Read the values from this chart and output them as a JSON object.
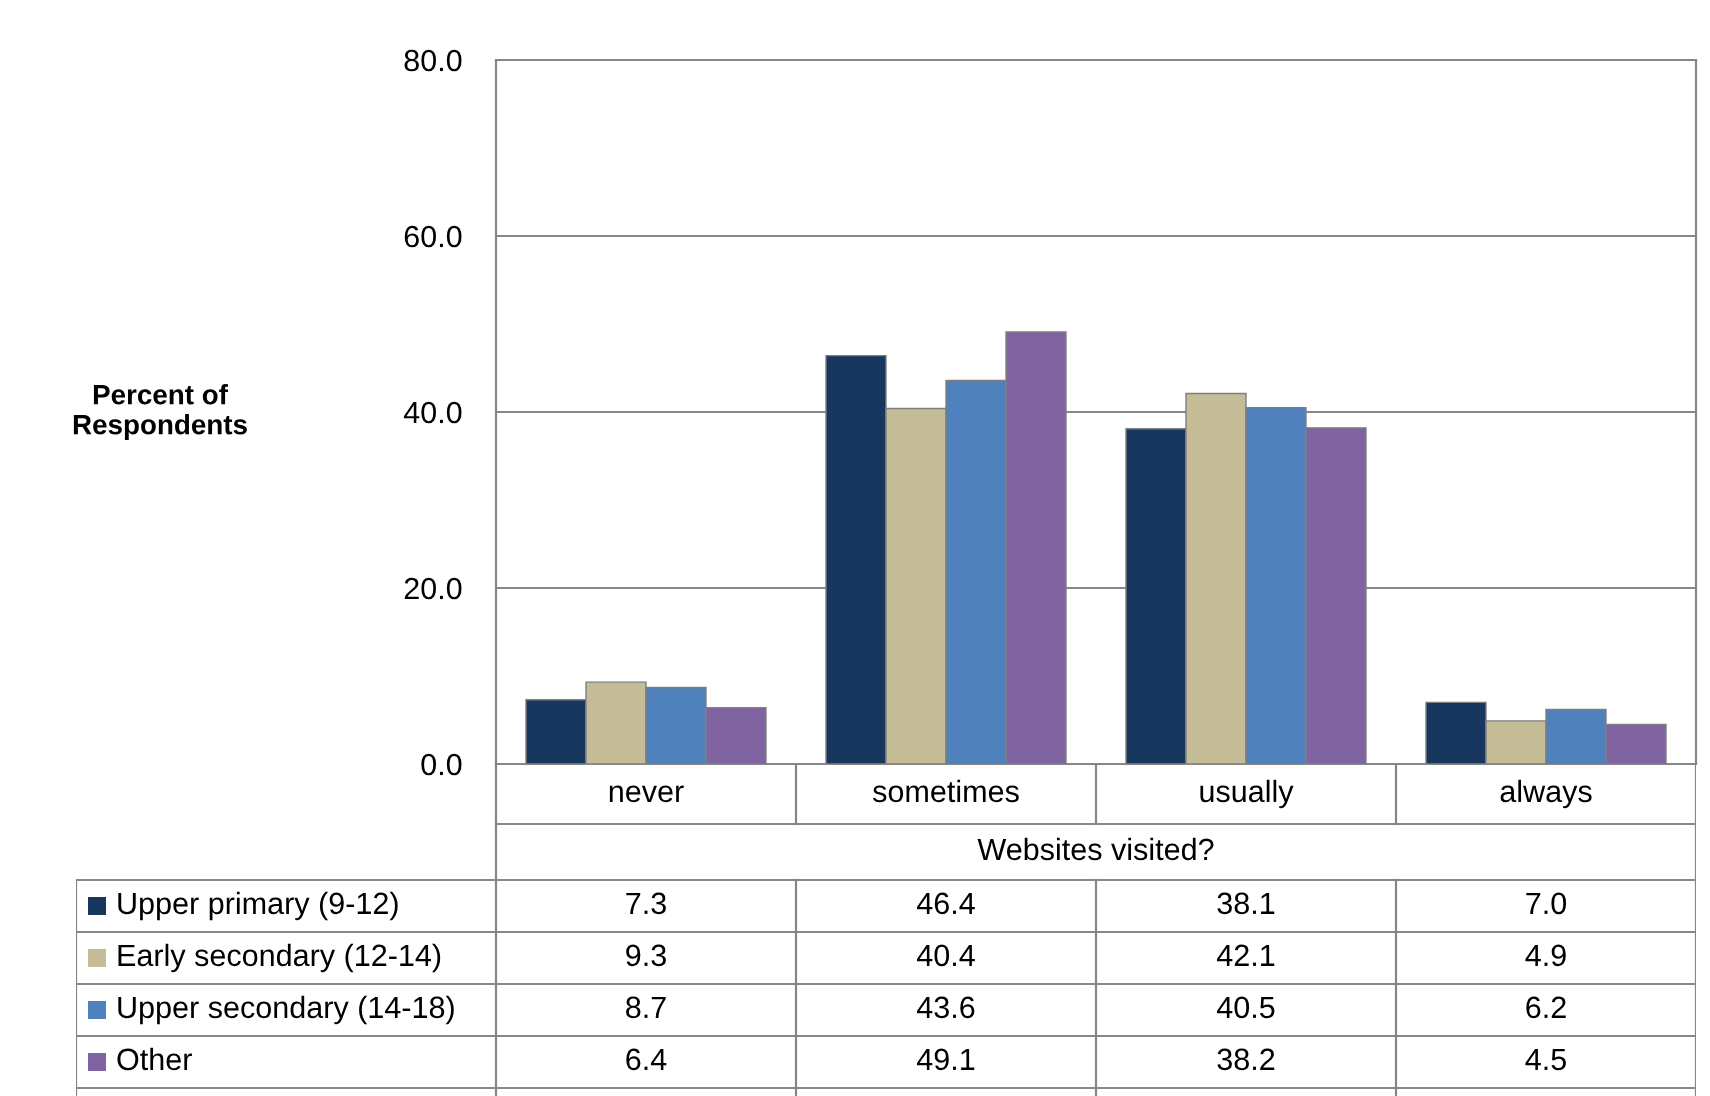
{
  "chart_data": {
    "type": "bar",
    "annotations": [
      "Percent of\nRespondents"
    ],
    "xlabel": "Websites visited?",
    "categories": [
      "never",
      "sometimes",
      "usually",
      "always"
    ],
    "series": [
      {
        "name": "Upper primary (9-12)",
        "color": "#17375e",
        "values": [
          7.3,
          46.4,
          38.1,
          7.0
        ],
        "value_labels": [
          "7.3",
          "46.4",
          "38.1",
          "7.0"
        ]
      },
      {
        "name": "Early secondary (12-14)",
        "color": "#c4bd97",
        "values": [
          9.3,
          40.4,
          42.1,
          4.9
        ],
        "value_labels": [
          "9.3",
          "40.4",
          "42.1",
          "4.9"
        ]
      },
      {
        "name": "Upper secondary (14-18)",
        "color": "#4f81bd",
        "values": [
          8.7,
          43.6,
          40.5,
          6.2
        ],
        "value_labels": [
          "8.7",
          "43.6",
          "40.5",
          "6.2"
        ]
      },
      {
        "name": "Other",
        "color": "#8064a2",
        "values": [
          6.4,
          49.1,
          38.2,
          4.5
        ],
        "value_labels": [
          "6.4",
          "49.1",
          "38.2",
          "4.5"
        ]
      }
    ],
    "ylim": [
      0,
      80
    ],
    "yticks": [
      {
        "value": 0,
        "label": "0.0"
      },
      {
        "value": 20,
        "label": "20.0"
      },
      {
        "value": 40,
        "label": "40.0"
      },
      {
        "value": 60,
        "label": "60.0"
      },
      {
        "value": 80,
        "label": "80.0"
      }
    ],
    "grid": "y",
    "legend": "bottom"
  }
}
